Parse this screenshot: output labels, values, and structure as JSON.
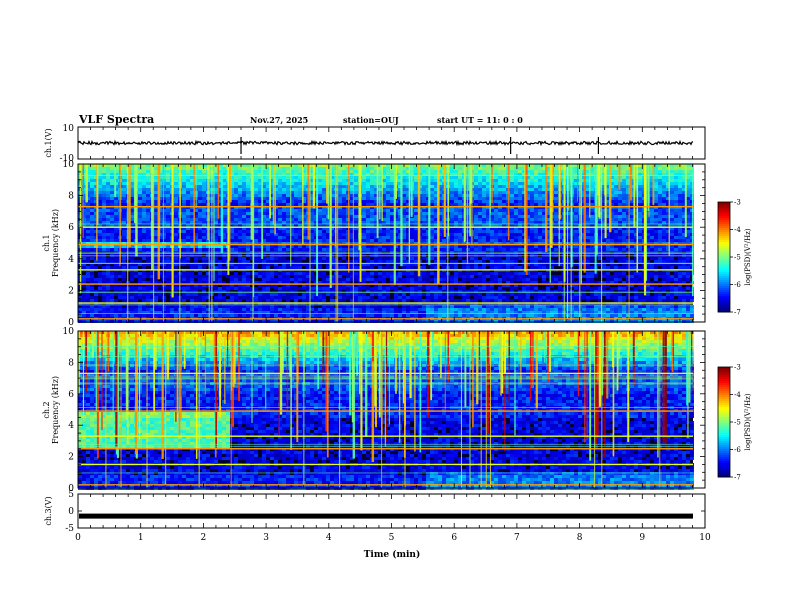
{
  "header": {
    "title": "VLF Spectra",
    "date": "Nov.27, 2025",
    "station": "station=OUJ",
    "start": "start  UT =  11: 0  : 0"
  },
  "colors": {
    "background_spec": "#000033",
    "axis": "#000000",
    "waveform": "#000000"
  },
  "chart_data": [
    {
      "type": "line",
      "name": "ch1-waveform",
      "ylabel": "ch.1(V)",
      "ylim": [
        -10,
        10
      ],
      "ytick_labels": [
        "10",
        "-10"
      ],
      "xlim": [
        0,
        10
      ],
      "baseline": 0,
      "spikes_min": [
        2.6,
        6.9,
        8.3
      ]
    },
    {
      "type": "heatmap",
      "name": "ch1-spectrogram",
      "ylabel": "ch.1\nFrequency (kHz)",
      "ylabel_line1": "ch.1",
      "ylabel_line2": "Frequency (kHz)",
      "ylim": [
        0,
        10
      ],
      "ytick_labels": [
        "0",
        "2",
        "4",
        "6",
        "8",
        "10"
      ],
      "xlim": [
        0,
        10
      ],
      "colorbar": {
        "label": "log(PSD)(V²/Hz)",
        "range": [
          -7,
          -3
        ],
        "tick_labels": [
          "-3",
          "-4",
          "-5",
          "-6",
          "-7"
        ]
      },
      "bright_lines_khz": [
        0.2,
        1.2,
        2.4,
        3.3,
        4.9,
        6.0,
        7.3
      ],
      "broadband_burst_band_khz": [
        4.8,
        5.1
      ],
      "burst_end_min": 2.4
    },
    {
      "type": "heatmap",
      "name": "ch2-spectrogram",
      "ylabel": "ch.2\nFrequency (kHz)",
      "ylabel_line1": "ch.2",
      "ylabel_line2": "Frequency (kHz)",
      "ylim": [
        0,
        10
      ],
      "ytick_labels": [
        "0",
        "2",
        "4",
        "6",
        "8",
        "10"
      ],
      "xlim": [
        0,
        10
      ],
      "colorbar": {
        "label": "log(PSD)(V²/Hz)",
        "range": [
          -7,
          -3
        ],
        "tick_labels": [
          "-3",
          "-4",
          "-5",
          "-6",
          "-7"
        ]
      },
      "bright_lines_khz": [
        0.2,
        1.5,
        2.5,
        3.3,
        4.9,
        7.3
      ],
      "broadband_burst_band_khz": [
        2.6,
        5.0
      ],
      "burst_end_min": 2.4
    },
    {
      "type": "line",
      "name": "ch3-waveform",
      "ylabel": "ch.3(V)",
      "ylim": [
        -5,
        5
      ],
      "ytick_labels": [
        "5",
        "0",
        "-5"
      ],
      "xlim": [
        0,
        10
      ],
      "baseline": -1.5,
      "xlabel": "Time (min)",
      "xtick_labels": [
        "0",
        "1",
        "2",
        "3",
        "4",
        "5",
        "6",
        "7",
        "8",
        "9",
        "10"
      ]
    }
  ]
}
